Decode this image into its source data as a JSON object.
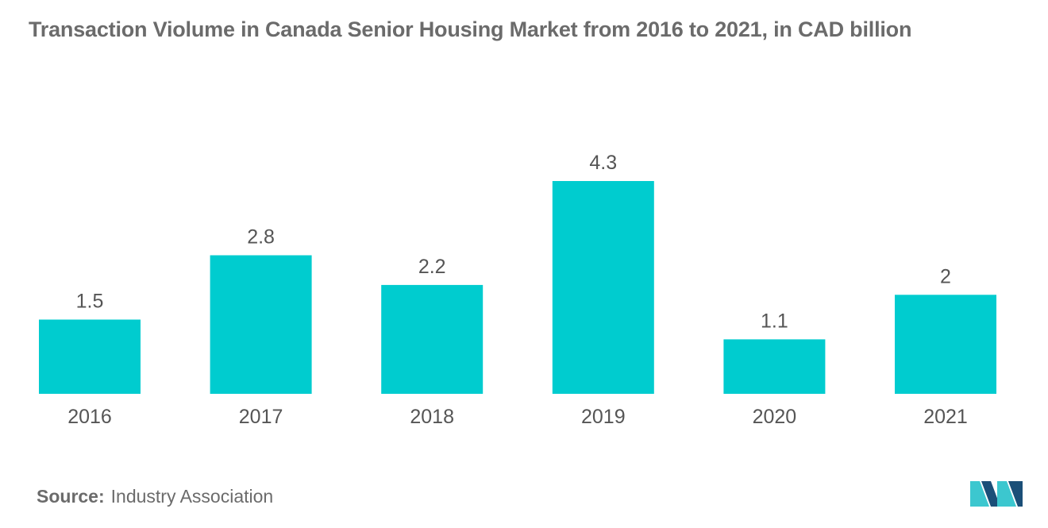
{
  "title": "Transaction Violume in Canada Senior Housing Market from 2016 to 2021, in CAD billion",
  "source": {
    "label": "Source:",
    "text": "Industry Association"
  },
  "colors": {
    "bar": "#00cccf",
    "text": "#6b6b6b",
    "axis_text": "#555555",
    "logo_dark": "#1b4f78",
    "logo_light": "#3cc7cf"
  },
  "chart_data": {
    "type": "bar",
    "categories": [
      "2016",
      "2017",
      "2018",
      "2019",
      "2020",
      "2021"
    ],
    "values": [
      1.5,
      2.8,
      2.2,
      4.3,
      1.1,
      2
    ],
    "data_labels": [
      "1.5",
      "2.8",
      "2.2",
      "4.3",
      "1.1",
      "2"
    ],
    "title": "Transaction Violume in Canada Senior Housing Market from 2016 to 2021, in CAD billion",
    "xlabel": "",
    "ylabel": "",
    "ylim": [
      0,
      4.3
    ],
    "grid": false,
    "legend": "none"
  }
}
